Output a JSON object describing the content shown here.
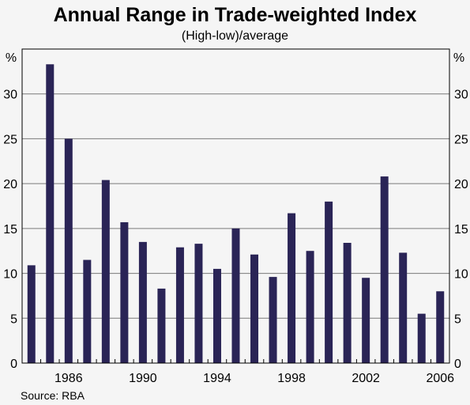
{
  "chart_data": {
    "type": "bar",
    "title": "Annual Range in Trade-weighted Index",
    "subtitle": "(High-low)/average",
    "y_unit_left": "%",
    "y_unit_right": "%",
    "ylim": [
      0,
      35
    ],
    "yticks": [
      0,
      5,
      10,
      15,
      20,
      25,
      30
    ],
    "xlim": [
      1984,
      2007
    ],
    "xticks": [
      1986,
      1990,
      1994,
      1998,
      2002,
      2006
    ],
    "x": [
      1984,
      1985,
      1986,
      1987,
      1988,
      1989,
      1990,
      1991,
      1992,
      1993,
      1994,
      1995,
      1996,
      1997,
      1998,
      1999,
      2000,
      2001,
      2002,
      2003,
      2004,
      2005,
      2006
    ],
    "values": [
      10.9,
      33.3,
      25.0,
      11.5,
      20.4,
      15.7,
      13.5,
      8.3,
      12.9,
      13.3,
      10.5,
      15.0,
      12.1,
      9.6,
      16.7,
      12.5,
      18.0,
      13.4,
      9.5,
      20.8,
      12.3,
      5.5,
      8.0
    ],
    "grid": true,
    "legend": "none",
    "bar_color": "#2a2456",
    "grid_color": "#7a7a7a",
    "source": "Source: RBA"
  }
}
